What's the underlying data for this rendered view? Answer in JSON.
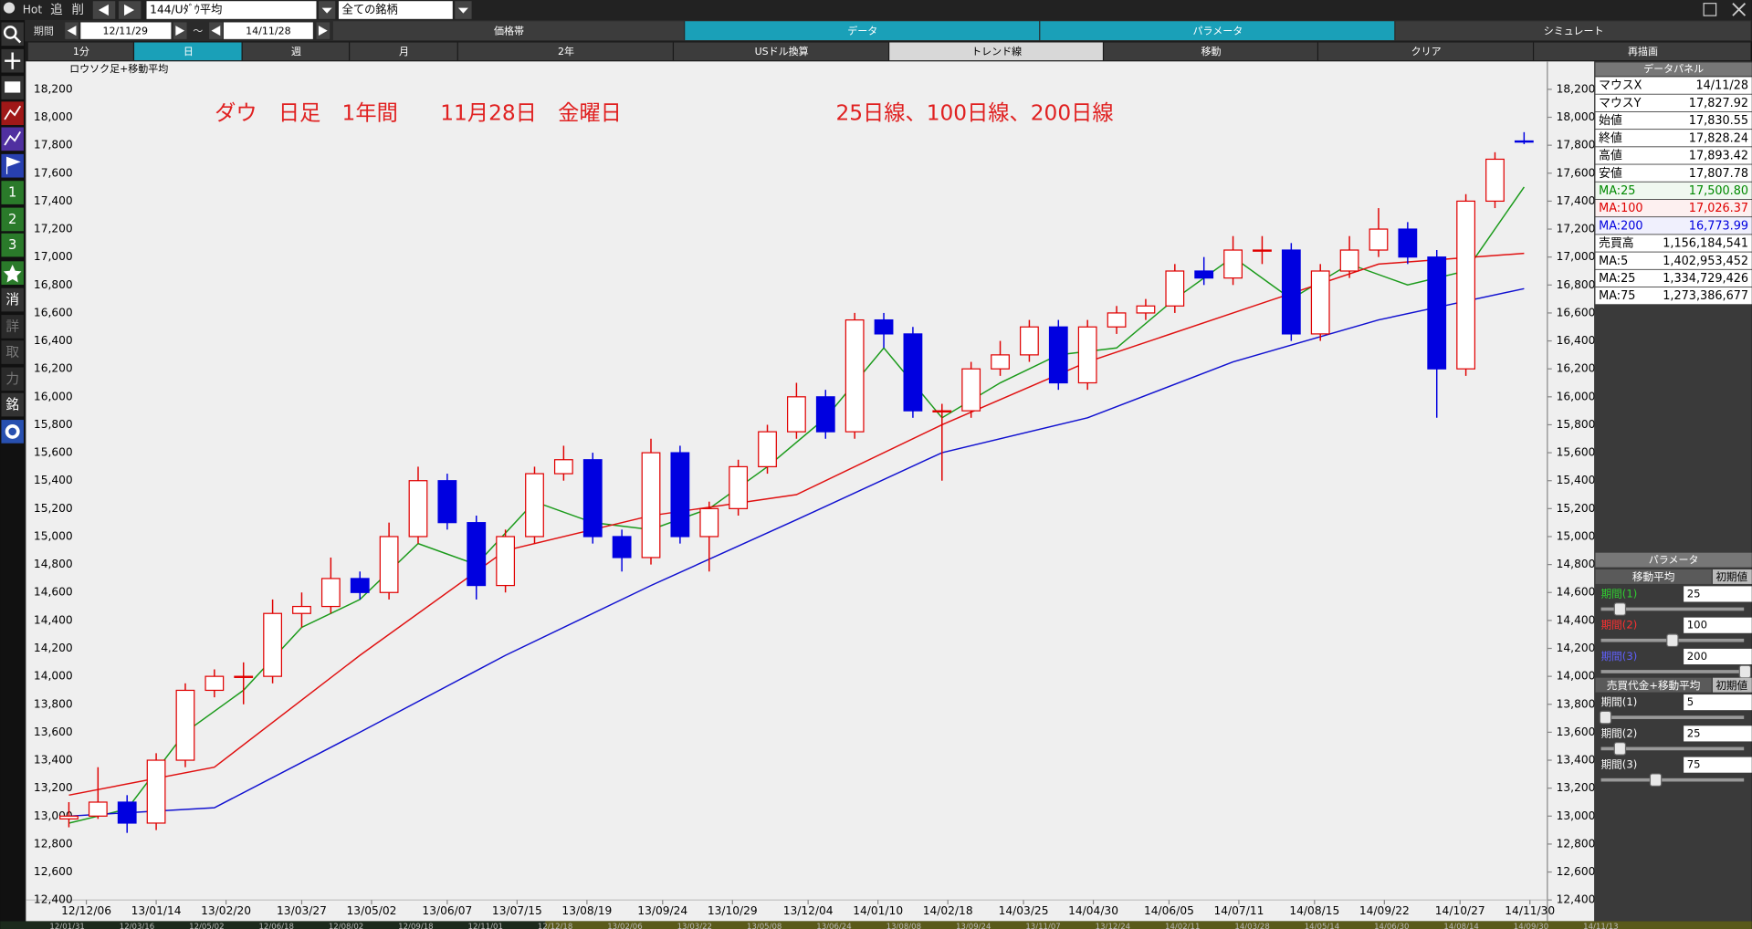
{
  "toolbar": {
    "hot": "Hot",
    "add": "追",
    "del": "削",
    "symbol": "144/Uﾀﾞｳ平均",
    "universe": "全ての銘柄",
    "period": "期間",
    "from": "12/11/29",
    "tilde": "～",
    "to": "14/11/28"
  },
  "top_tabs": [
    "価格帯",
    "データ",
    "パラメータ",
    "シミュレート"
  ],
  "range_tabs": [
    "1分",
    "日",
    "週",
    "月",
    "2年",
    "USドル換算",
    "トレンド線",
    "移動",
    "クリア",
    "再描画"
  ],
  "side_buttons": [
    "1",
    "2",
    "3",
    "消",
    "詳",
    "取",
    "力",
    "銘"
  ],
  "timeline": [
    "12/01/31",
    "12/03/16",
    "12/05/02",
    "12/06/18",
    "12/08/02",
    "12/09/18",
    "12/11/01",
    "12/12/18",
    "13/02/06",
    "13/03/22",
    "13/05/08",
    "13/06/24",
    "13/08/08",
    "13/09/24",
    "13/11/07",
    "13/12/24",
    "14/02/11",
    "14/03/28",
    "14/05/14",
    "14/06/30",
    "14/08/14",
    "14/09/30",
    "14/11/13"
  ],
  "chart_data": {
    "type": "candlestick",
    "title": "ロウソク足+移動平均",
    "annotations": [
      "ダウ　日足　1年間　　11月28日　金曜日",
      "25日線、100日線、200日線"
    ],
    "up_color": "#e00000",
    "down_color": "#0000e0",
    "xlim": [
      -7,
      254
    ],
    "ylim": [
      12400,
      18200
    ],
    "xticks": [
      {
        "value": 3,
        "label": "12/12/06"
      },
      {
        "value": 15,
        "label": "13/01/14"
      },
      {
        "value": 27,
        "label": "13/02/20"
      },
      {
        "value": 40,
        "label": "13/03/27"
      },
      {
        "value": 52,
        "label": "13/05/02"
      },
      {
        "value": 65,
        "label": "13/06/07"
      },
      {
        "value": 77,
        "label": "13/07/15"
      },
      {
        "value": 89,
        "label": "13/08/19"
      },
      {
        "value": 102,
        "label": "13/09/24"
      },
      {
        "value": 114,
        "label": "13/10/29"
      },
      {
        "value": 127,
        "label": "13/12/04"
      },
      {
        "value": 139,
        "label": "14/01/10"
      },
      {
        "value": 151,
        "label": "14/02/18"
      },
      {
        "value": 164,
        "label": "14/03/25"
      },
      {
        "value": 176,
        "label": "14/04/30"
      },
      {
        "value": 189,
        "label": "14/06/05"
      },
      {
        "value": 201,
        "label": "14/07/11"
      },
      {
        "value": 214,
        "label": "14/08/15"
      },
      {
        "value": 226,
        "label": "14/09/22"
      },
      {
        "value": 239,
        "label": "14/10/27"
      },
      {
        "value": 251,
        "label": "14/11/30"
      }
    ],
    "yticks": [
      {
        "value": 12400,
        "label": "12,400"
      },
      {
        "value": 12600,
        "label": "12,600"
      },
      {
        "value": 12800,
        "label": "12,800"
      },
      {
        "value": 13000,
        "label": "13,000"
      },
      {
        "value": 13200,
        "label": "13,200"
      },
      {
        "value": 13400,
        "label": "13,400"
      },
      {
        "value": 13600,
        "label": "13,600"
      },
      {
        "value": 13800,
        "label": "13,800"
      },
      {
        "value": 14000,
        "label": "14,000"
      },
      {
        "value": 14200,
        "label": "14,200"
      },
      {
        "value": 14400,
        "label": "14,400"
      },
      {
        "value": 14600,
        "label": "14,600"
      },
      {
        "value": 14800,
        "label": "14,800"
      },
      {
        "value": 15000,
        "label": "15,000"
      },
      {
        "value": 15200,
        "label": "15,200"
      },
      {
        "value": 15400,
        "label": "15,400"
      },
      {
        "value": 15600,
        "label": "15,600"
      },
      {
        "value": 15800,
        "label": "15,800"
      },
      {
        "value": 16000,
        "label": "16,000"
      },
      {
        "value": 16200,
        "label": "16,200"
      },
      {
        "value": 16400,
        "label": "16,400"
      },
      {
        "value": 16600,
        "label": "16,600"
      },
      {
        "value": 16800,
        "label": "16,800"
      },
      {
        "value": 17000,
        "label": "17,000"
      },
      {
        "value": 17200,
        "label": "17,200"
      },
      {
        "value": 17400,
        "label": "17,400"
      },
      {
        "value": 17600,
        "label": "17,600"
      },
      {
        "value": 17800,
        "label": "17,800"
      },
      {
        "value": 18000,
        "label": "18,000"
      },
      {
        "value": 18200,
        "label": "18,200"
      }
    ],
    "x": [
      0,
      5,
      10,
      15,
      20,
      25,
      30,
      35,
      40,
      45,
      50,
      55,
      60,
      65,
      70,
      75,
      80,
      85,
      90,
      95,
      100,
      105,
      110,
      115,
      120,
      125,
      130,
      135,
      140,
      145,
      150,
      155,
      160,
      165,
      170,
      175,
      180,
      185,
      190,
      195,
      200,
      205,
      210,
      215,
      220,
      225,
      230,
      235,
      240,
      245,
      250
    ],
    "open": [
      12980,
      13000,
      13100,
      12950,
      13400,
      13900,
      14000,
      14000,
      14450,
      14500,
      14700,
      14600,
      15000,
      15400,
      15100,
      14650,
      15000,
      15450,
      15550,
      15000,
      14850,
      15600,
      15000,
      15200,
      15500,
      15750,
      16000,
      15750,
      16550,
      16450,
      15900,
      15900,
      16200,
      16300,
      16500,
      16100,
      16500,
      16600,
      16650,
      16900,
      16850,
      17050,
      17050,
      16450,
      16900,
      17050,
      17200,
      17000,
      16200,
      17400,
      17830.55
    ],
    "high": [
      13100,
      13350,
      13150,
      13450,
      13950,
      14050,
      14100,
      14550,
      14600,
      14850,
      14750,
      15100,
      15500,
      15450,
      15150,
      15050,
      15500,
      15650,
      15600,
      15050,
      15700,
      15650,
      15250,
      15550,
      15800,
      16100,
      16050,
      16600,
      16600,
      16500,
      15950,
      16250,
      16400,
      16550,
      16550,
      16550,
      16650,
      16700,
      16950,
      17000,
      17150,
      17150,
      17100,
      16950,
      17150,
      17350,
      17250,
      17050,
      17450,
      17750,
      17893.42
    ],
    "low": [
      12920,
      12980,
      12880,
      12900,
      13350,
      13850,
      13800,
      13950,
      14350,
      14450,
      14550,
      14550,
      14950,
      15050,
      14550,
      14600,
      14950,
      15400,
      14950,
      14750,
      14800,
      14950,
      14750,
      15150,
      15450,
      15700,
      15700,
      15700,
      16350,
      15850,
      15400,
      15850,
      16150,
      16250,
      16050,
      16050,
      16450,
      16550,
      16600,
      16800,
      16800,
      16950,
      16400,
      16400,
      16850,
      17000,
      16950,
      15850,
      16150,
      17350,
      17807.78
    ],
    "close": [
      13000,
      13100,
      12950,
      13400,
      13900,
      14000,
      14000,
      14450,
      14500,
      14700,
      14600,
      15000,
      15400,
      15100,
      14650,
      15000,
      15450,
      15550,
      15000,
      14850,
      15600,
      15000,
      15200,
      15500,
      15750,
      16000,
      15750,
      16550,
      16450,
      15900,
      15900,
      16200,
      16300,
      16500,
      16100,
      16500,
      16600,
      16650,
      16900,
      16850,
      17050,
      17050,
      16450,
      16900,
      17050,
      17200,
      17000,
      16200,
      17400,
      17700,
      17828.24
    ],
    "series": [
      {
        "color": "#1a9a1a",
        "x": [
          0,
          10,
          20,
          30,
          40,
          50,
          60,
          70,
          80,
          90,
          100,
          110,
          120,
          130,
          140,
          150,
          160,
          170,
          180,
          190,
          200,
          210,
          220,
          230,
          240,
          250
        ],
        "values": [
          12950,
          13050,
          13600,
          13900,
          14350,
          14550,
          14950,
          14800,
          15250,
          15100,
          15050,
          15200,
          15500,
          15850,
          16350,
          15850,
          16100,
          16300,
          16350,
          16700,
          17000,
          16700,
          16950,
          16800,
          16900,
          17500.8
        ]
      },
      {
        "color": "#e01010",
        "x": [
          0,
          25,
          50,
          75,
          100,
          125,
          150,
          175,
          200,
          225,
          250
        ],
        "values": [
          13150,
          13350,
          14150,
          14900,
          15150,
          15300,
          15800,
          16250,
          16600,
          16950,
          17026.37
        ]
      },
      {
        "color": "#1010d0",
        "x": [
          0,
          25,
          50,
          75,
          100,
          125,
          150,
          175,
          200,
          225,
          250
        ],
        "values": [
          13000,
          13060,
          13600,
          14150,
          14650,
          15120,
          15600,
          15850,
          16250,
          16550,
          16773.99
        ]
      }
    ]
  },
  "data_panel": {
    "title": "データパネル",
    "rows": [
      {
        "label": "マウスX",
        "value": "14/11/28"
      },
      {
        "label": "マウスY",
        "value": "17,827.92"
      },
      {
        "label": "始値",
        "value": "17,830.55"
      },
      {
        "label": "終値",
        "value": "17,828.24"
      },
      {
        "label": "高値",
        "value": "17,893.42"
      },
      {
        "label": "安値",
        "value": "17,807.78"
      },
      {
        "label": "MA:25",
        "value": "17,500.80",
        "color": "#008a00"
      },
      {
        "label": "MA:100",
        "value": "17,026.37",
        "color": "#e00000"
      },
      {
        "label": "MA:200",
        "value": "16,773.99",
        "color": "#0000e0"
      },
      {
        "label": "売買高",
        "value": "1,156,184,541"
      },
      {
        "label": "MA:5",
        "value": "1,402,953,452"
      },
      {
        "label": "MA:25",
        "value": "1,334,729,426"
      },
      {
        "label": "MA:75",
        "value": "1,273,386,677"
      }
    ]
  },
  "param_panel": {
    "title": "パラメータ",
    "sections": [
      {
        "title": "移動平均",
        "reset": "初期値",
        "rows": [
          {
            "label": "期間(1)",
            "value": "25",
            "color": "#30d030"
          },
          {
            "label": "期間(2)",
            "value": "100",
            "color": "#ff3030"
          },
          {
            "label": "期間(3)",
            "value": "200",
            "color": "#6060ff"
          }
        ]
      },
      {
        "title": "売買代金+移動平均",
        "reset": "初期値",
        "rows": [
          {
            "label": "期間(1)",
            "value": "5",
            "color": "#ffffff"
          },
          {
            "label": "期間(2)",
            "value": "25",
            "color": "#ffffff"
          },
          {
            "label": "期間(3)",
            "value": "75",
            "color": "#ffffff"
          }
        ]
      }
    ]
  }
}
